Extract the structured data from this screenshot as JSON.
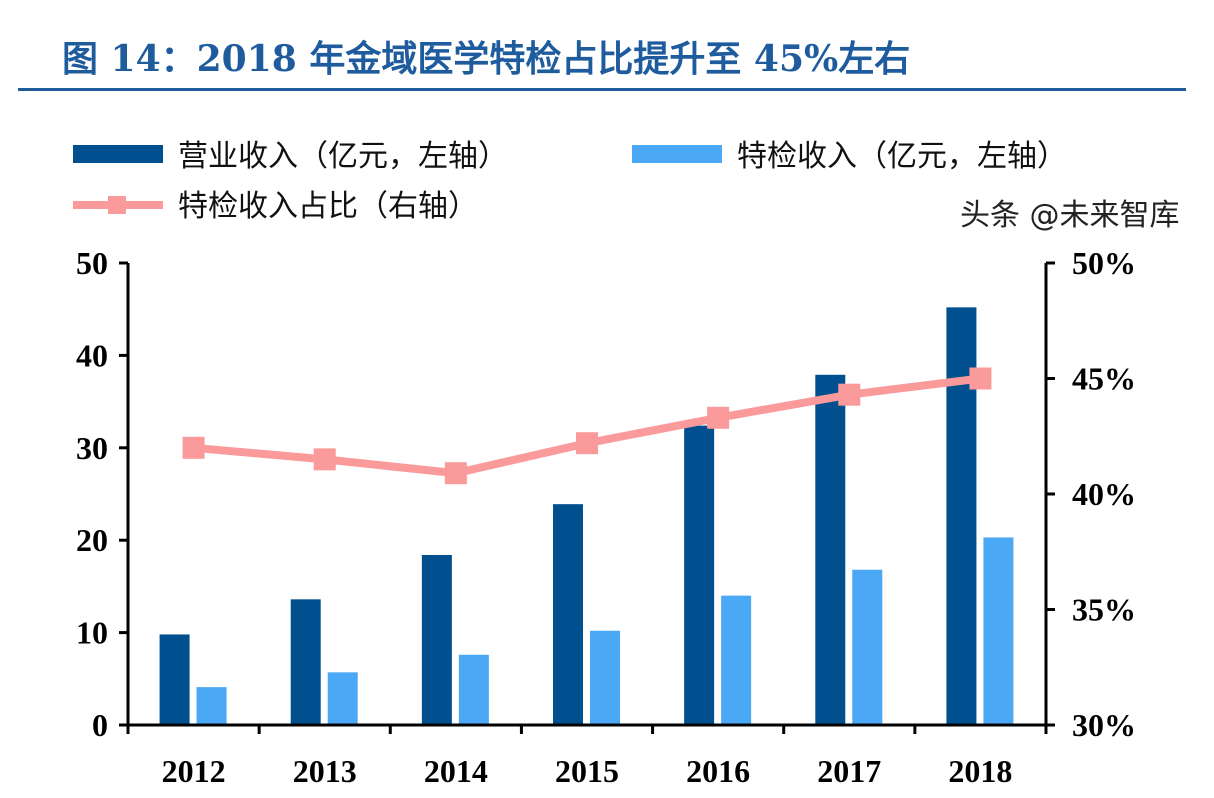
{
  "title": "图 14：2018 年金域医学特检占比提升至 45%左右",
  "watermark": "头条 @未来智库",
  "chart_data": {
    "type": "bar",
    "categories": [
      "2012",
      "2013",
      "2014",
      "2015",
      "2016",
      "2017",
      "2018"
    ],
    "series": [
      {
        "name": "营业收入（亿元，左轴）",
        "type": "bar",
        "axis": "left",
        "color": "#00508f",
        "values": [
          9.8,
          13.6,
          18.4,
          23.9,
          32.4,
          37.9,
          45.2
        ]
      },
      {
        "name": "特检收入（亿元，左轴）",
        "type": "bar",
        "axis": "left",
        "color": "#4aa8f5",
        "values": [
          4.1,
          5.7,
          7.6,
          10.2,
          14.0,
          16.8,
          20.3
        ]
      },
      {
        "name": "特检收入占比（右轴）",
        "type": "line",
        "axis": "right",
        "color": "#fa9a9a",
        "marker": "square",
        "values": [
          42.0,
          41.5,
          40.9,
          42.2,
          43.3,
          44.3,
          45.0
        ]
      }
    ],
    "left_axis": {
      "ylim": [
        0,
        50
      ],
      "ticks": [
        "0",
        "10",
        "20",
        "30",
        "40",
        "50"
      ]
    },
    "right_axis": {
      "ylim": [
        30,
        50
      ],
      "ticks": [
        "30%",
        "35%",
        "40%",
        "45%",
        "50%"
      ]
    },
    "legend_position": "top-left",
    "grid": false
  }
}
